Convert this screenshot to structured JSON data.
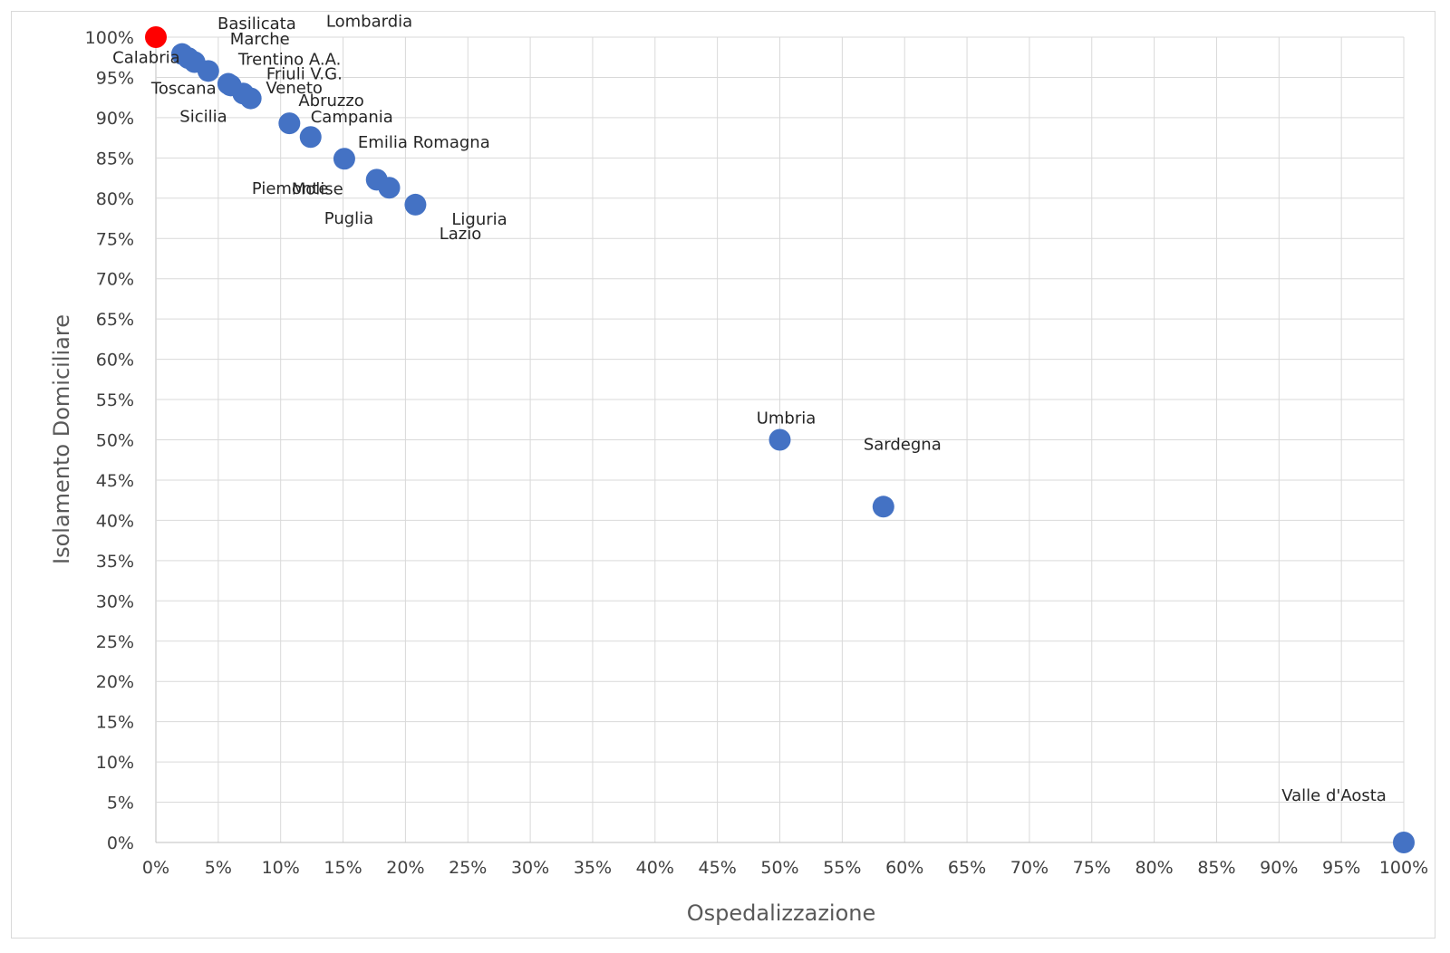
{
  "chart_data": {
    "type": "scatter",
    "title": "",
    "xlabel": "Ospedalizzazione",
    "ylabel": "Isolamento Domiciliare",
    "xlim": [
      0,
      1
    ],
    "ylim": [
      0,
      1
    ],
    "x_ticks": [
      "0%",
      "5%",
      "10%",
      "15%",
      "20%",
      "25%",
      "30%",
      "35%",
      "40%",
      "45%",
      "50%",
      "55%",
      "60%",
      "65%",
      "70%",
      "75%",
      "80%",
      "85%",
      "90%",
      "95%",
      "100%"
    ],
    "y_ticks": [
      "0%",
      "5%",
      "10%",
      "15%",
      "20%",
      "25%",
      "30%",
      "35%",
      "40%",
      "45%",
      "50%",
      "55%",
      "60%",
      "65%",
      "70%",
      "75%",
      "80%",
      "85%",
      "90%",
      "95%",
      "100%"
    ],
    "grid": true,
    "default_color": "#4472C4",
    "highlight_color": "#FF0000",
    "points": [
      {
        "label": "Basilicata",
        "x": 0.0,
        "y": 1.0,
        "highlight": true
      },
      {
        "label": "Lombardia",
        "x": 0.021,
        "y": 0.979,
        "highlight": false
      },
      {
        "label": "Marche",
        "x": 0.026,
        "y": 0.974,
        "highlight": false
      },
      {
        "label": "Calabria",
        "x": 0.031,
        "y": 0.969,
        "highlight": false
      },
      {
        "label": "Trentino A.A.",
        "x": 0.042,
        "y": 0.958,
        "highlight": false
      },
      {
        "label": "Friuli V.G.",
        "x": 0.058,
        "y": 0.942,
        "highlight": false
      },
      {
        "label": "Toscana",
        "x": 0.06,
        "y": 0.94,
        "highlight": false
      },
      {
        "label": "Veneto",
        "x": 0.07,
        "y": 0.93,
        "highlight": false
      },
      {
        "label": "Sicilia",
        "x": 0.076,
        "y": 0.924,
        "highlight": false
      },
      {
        "label": "Abruzzo",
        "x": 0.107,
        "y": 0.893,
        "highlight": false
      },
      {
        "label": "Campania",
        "x": 0.124,
        "y": 0.876,
        "highlight": false
      },
      {
        "label": "Emilia Romagna",
        "x": 0.151,
        "y": 0.849,
        "highlight": false
      },
      {
        "label": "Molise",
        "x": 0.177,
        "y": 0.823,
        "highlight": false
      },
      {
        "label": "Piemonte",
        "x": 0.187,
        "y": 0.813,
        "highlight": false
      },
      {
        "label": "Liguria",
        "x": 0.208,
        "y": 0.792,
        "highlight": false
      },
      {
        "label": "Umbria",
        "x": 0.5,
        "y": 0.5,
        "highlight": false
      },
      {
        "label": "Sardegna",
        "x": 0.583,
        "y": 0.417,
        "highlight": false
      },
      {
        "label": "Valle d'Aosta",
        "x": 1.0,
        "y": 0.0,
        "highlight": false
      }
    ],
    "floating_labels": [
      "Puglia",
      "Lazio"
    ]
  }
}
